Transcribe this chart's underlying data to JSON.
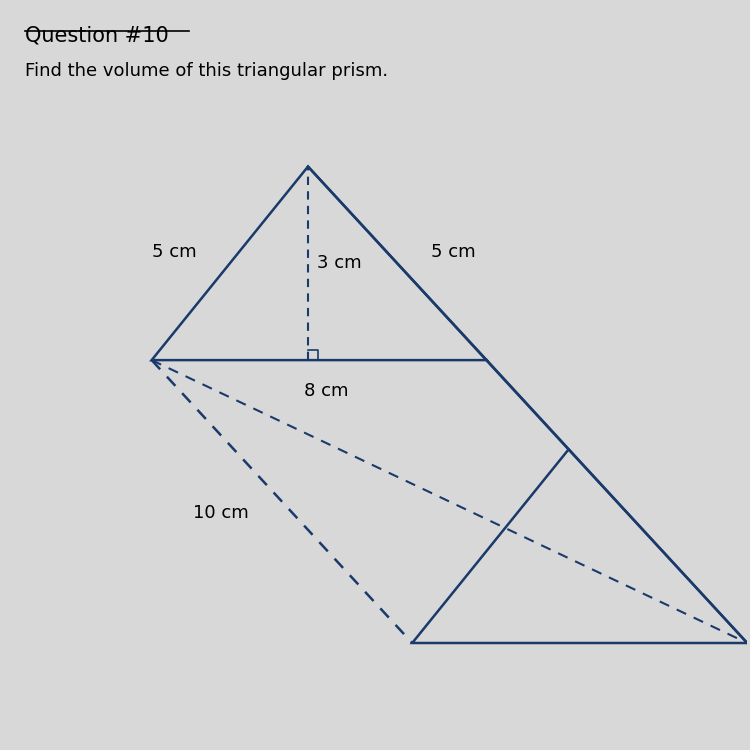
{
  "title": "Question #10",
  "subtitle": "Find the volume of this triangular prism.",
  "title_color": "#000000",
  "bg_color": "#d8d8d8",
  "line_color": "#1a3a6b",
  "dashed_color": "#1a3a6b",
  "label_5cm_left": "5 cm",
  "label_5cm_right": "5 cm",
  "label_3cm": "3 cm",
  "label_8cm": "8 cm",
  "label_10cm": "10 cm",
  "font_size_title": 15,
  "font_size_label": 13,
  "font_size_subtitle": 13
}
